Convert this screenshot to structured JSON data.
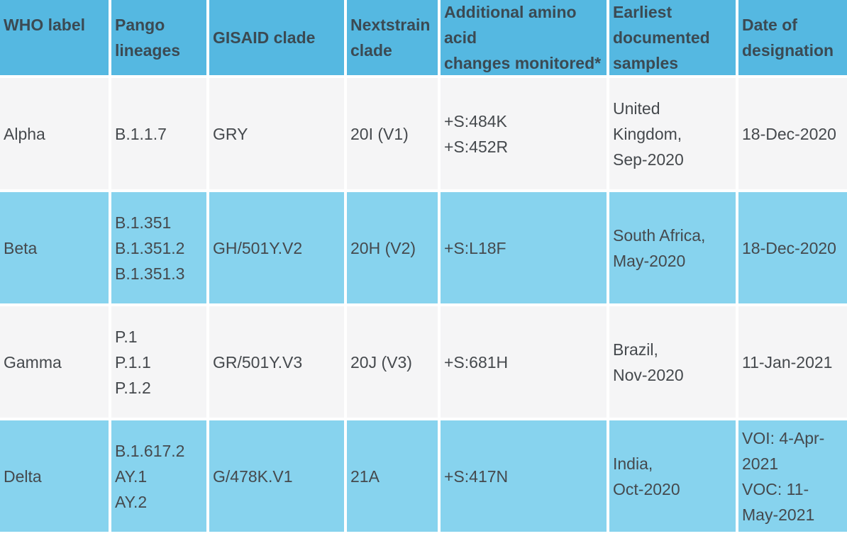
{
  "colors": {
    "header_bg": "#55b8e1",
    "row_blue_bg": "#87d3ee",
    "row_gray_bg": "#f5f5f6",
    "gap": "#ffffff",
    "header_text": "#3b4a53",
    "body_text": "#45494d"
  },
  "table": {
    "columns": [
      {
        "label": "WHO label"
      },
      {
        "label": "Pango lineages"
      },
      {
        "label": "GISAID clade"
      },
      {
        "label": "Nextstrain clade"
      },
      {
        "label": "Additional amino acid\nchanges monitored*"
      },
      {
        "label": "Earliest documented samples"
      },
      {
        "label": "Date of designation"
      }
    ],
    "rows": [
      {
        "who_label": "Alpha",
        "pango_lineages": [
          "B.1.1.7"
        ],
        "gisaid_clade": "GRY",
        "nextstrain_clade": "20I (V1)",
        "aa_changes": [
          "+S:484K",
          "+S:452R"
        ],
        "earliest_samples": [
          "United Kingdom,",
          "Sep-2020"
        ],
        "date_of_designation": [
          "18-Dec-2020"
        ]
      },
      {
        "who_label": "Beta",
        "pango_lineages": [
          "B.1.351",
          "B.1.351.2",
          "B.1.351.3"
        ],
        "gisaid_clade": "GH/501Y.V2",
        "nextstrain_clade": "20H (V2)",
        "aa_changes": [
          "+S:L18F"
        ],
        "earliest_samples": [
          "South Africa,",
          "May-2020"
        ],
        "date_of_designation": [
          "18-Dec-2020"
        ]
      },
      {
        "who_label": "Gamma",
        "pango_lineages": [
          "P.1",
          "P.1.1",
          "P.1.2"
        ],
        "gisaid_clade": "GR/501Y.V3",
        "nextstrain_clade": "20J (V3)",
        "aa_changes": [
          "+S:681H"
        ],
        "earliest_samples": [
          "Brazil,",
          "Nov-2020"
        ],
        "date_of_designation": [
          "11-Jan-2021"
        ]
      },
      {
        "who_label": "Delta",
        "pango_lineages": [
          "B.1.617.2",
          "AY.1",
          "AY.2"
        ],
        "gisaid_clade": "G/478K.V1",
        "nextstrain_clade": "21A",
        "aa_changes": [
          "+S:417N"
        ],
        "earliest_samples": [
          "India,",
          "Oct-2020"
        ],
        "date_of_designation": [
          "VOI: 4-Apr-2021",
          "VOC: 11-May-2021"
        ]
      }
    ]
  }
}
